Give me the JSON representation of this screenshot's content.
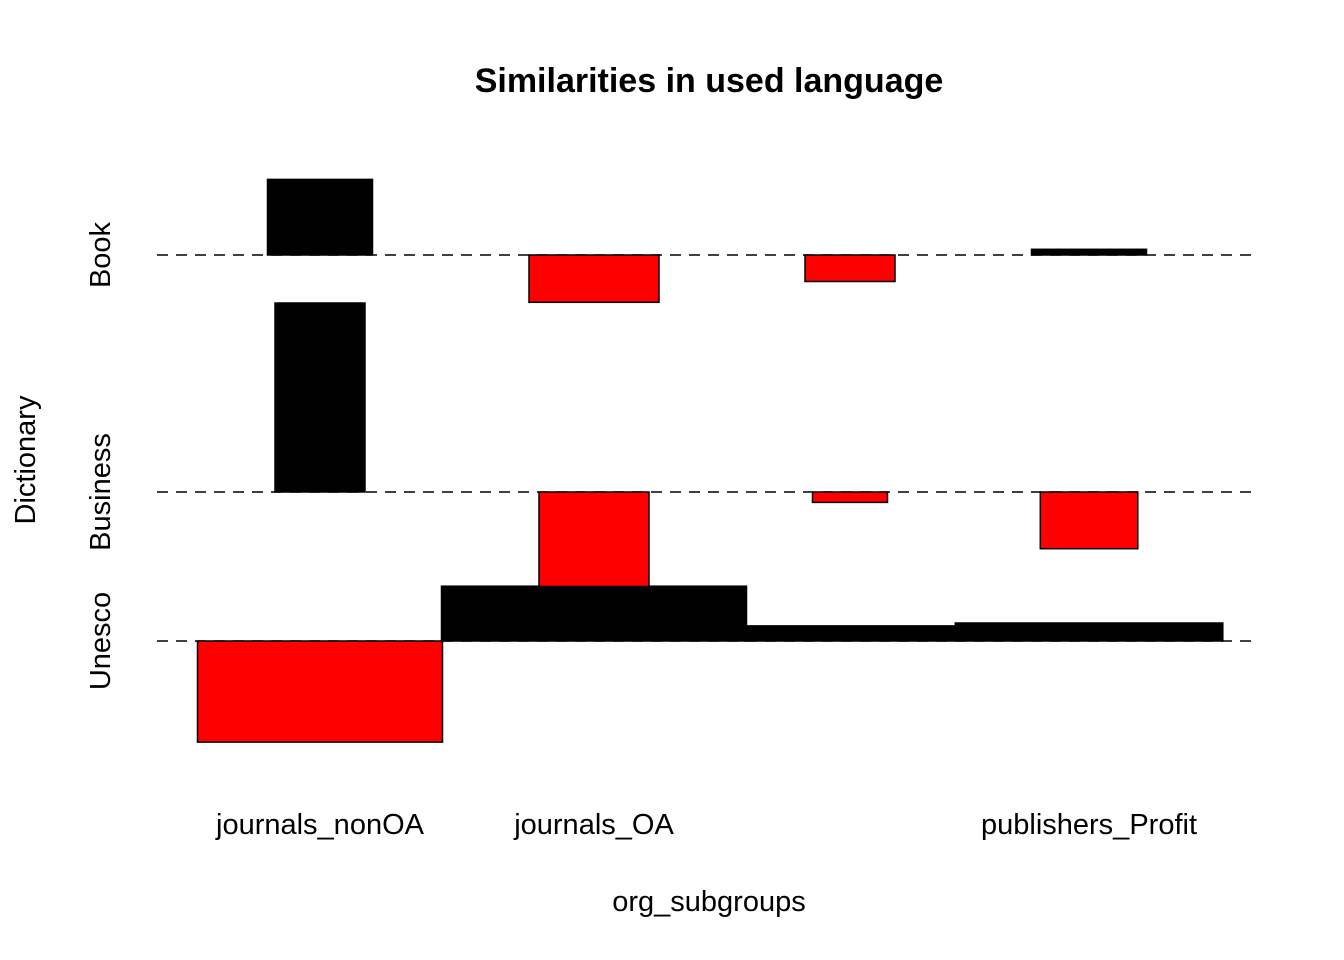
{
  "chart_data": {
    "type": "bar",
    "title": "Similarities in used language",
    "xlabel": "org_subgroups",
    "ylabel": "Dictionary",
    "x_tick_labels": [
      "journals_nonOA",
      "journals_OA",
      "",
      "publishers_Profit"
    ],
    "rows": [
      {
        "label": "Book",
        "bars": [
          {
            "category": "journals_nonOA",
            "value": 0.8,
            "width": 0.42,
            "color": "#000000"
          },
          {
            "category": "journals_OA",
            "value": -0.5,
            "width": 0.52,
            "color": "#ff0000"
          },
          {
            "category": "",
            "value": -0.28,
            "width": 0.36,
            "color": "#ff0000"
          },
          {
            "category": "publishers_Profit",
            "value": 0.06,
            "width": 0.46,
            "color": "#000000"
          }
        ]
      },
      {
        "label": "Business",
        "bars": [
          {
            "category": "journals_nonOA",
            "value": 2.0,
            "width": 0.36,
            "color": "#000000"
          },
          {
            "category": "journals_OA",
            "value": -1.0,
            "width": 0.44,
            "color": "#ff0000"
          },
          {
            "category": "",
            "value": -0.11,
            "width": 0.3,
            "color": "#ff0000"
          },
          {
            "category": "publishers_Profit",
            "value": -0.6,
            "width": 0.39,
            "color": "#ff0000"
          }
        ]
      },
      {
        "label": "Unesco",
        "bars": [
          {
            "category": "journals_nonOA",
            "value": -1.07,
            "width": 0.98,
            "color": "#ff0000"
          },
          {
            "category": "journals_OA",
            "value": 0.58,
            "width": 1.22,
            "color": "#000000"
          },
          {
            "category": "",
            "value": 0.16,
            "width": 0.84,
            "color": "#000000"
          },
          {
            "category": "publishers_Profit",
            "value": 0.19,
            "width": 1.07,
            "color": "#000000"
          }
        ]
      }
    ],
    "reference_lines": "dashed",
    "legend": "none"
  }
}
